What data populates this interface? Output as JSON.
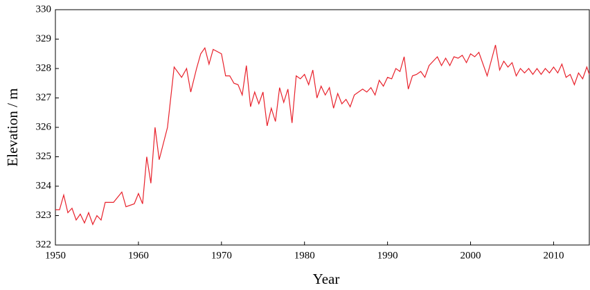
{
  "chart_data": {
    "type": "line",
    "xlabel": "Year",
    "ylabel": "Elevation / m",
    "xlim": [
      1950,
      2014.3
    ],
    "ylim": [
      322,
      330
    ],
    "xticks": [
      1950,
      1960,
      1970,
      1980,
      1990,
      2000,
      2010
    ],
    "yticks": [
      322,
      323,
      324,
      325,
      326,
      327,
      328,
      329,
      330
    ],
    "series": [
      {
        "color": "#e8202a",
        "x": [
          1950,
          1950.5,
          1951,
          1951.5,
          1952,
          1952.5,
          1953,
          1953.5,
          1954,
          1954.5,
          1955,
          1955.5,
          1956,
          1957,
          1958,
          1958.5,
          1959.5,
          1960,
          1960.5,
          1961,
          1961.5,
          1962,
          1962.5,
          1963.5,
          1964.3,
          1965.2,
          1965.8,
          1966.3,
          1967,
          1967.5,
          1968,
          1968.5,
          1969,
          1970,
          1970.5,
          1971,
          1971.5,
          1972,
          1972.5,
          1973,
          1973.5,
          1974,
          1974.5,
          1975,
          1975.5,
          1976,
          1976.5,
          1977,
          1977.5,
          1978,
          1978.5,
          1979,
          1979.5,
          1980,
          1980.5,
          1981,
          1981.5,
          1982,
          1982.5,
          1983,
          1983.5,
          1984,
          1984.5,
          1985,
          1985.5,
          1986,
          1987,
          1987.5,
          1988,
          1988.5,
          1989,
          1989.5,
          1990,
          1990.5,
          1991,
          1991.5,
          1992,
          1992.5,
          1993,
          1993.5,
          1994,
          1994.5,
          1995,
          1996,
          1996.5,
          1997,
          1997.5,
          1998,
          1998.5,
          1999,
          1999.5,
          2000,
          2000.5,
          2001,
          2002,
          2003,
          2003.5,
          2004,
          2004.5,
          2005,
          2005.5,
          2006,
          2006.5,
          2007,
          2007.5,
          2008,
          2008.5,
          2009,
          2009.5,
          2010,
          2010.5,
          2011,
          2011.5,
          2012,
          2012.5,
          2013,
          2013.5,
          2014,
          2014.3
        ],
        "values": [
          323.2,
          323.2,
          323.7,
          323.1,
          323.25,
          322.85,
          323.05,
          322.75,
          323.1,
          322.7,
          323.0,
          322.85,
          323.45,
          323.45,
          323.8,
          323.3,
          323.4,
          323.75,
          323.4,
          325.0,
          324.1,
          326.0,
          324.9,
          326.0,
          328.05,
          327.7,
          328.0,
          327.2,
          328.0,
          328.5,
          328.7,
          328.15,
          328.65,
          328.5,
          327.75,
          327.75,
          327.5,
          327.45,
          327.1,
          328.1,
          326.7,
          327.2,
          326.8,
          327.2,
          326.05,
          326.65,
          326.2,
          327.35,
          326.85,
          327.3,
          326.15,
          327.75,
          327.65,
          327.8,
          327.45,
          327.95,
          327.0,
          327.4,
          327.1,
          327.35,
          326.65,
          327.15,
          326.8,
          326.95,
          326.7,
          327.1,
          327.3,
          327.2,
          327.35,
          327.1,
          327.6,
          327.4,
          327.7,
          327.65,
          328.0,
          327.9,
          328.4,
          327.3,
          327.75,
          327.8,
          327.9,
          327.7,
          328.1,
          328.4,
          328.1,
          328.35,
          328.1,
          328.4,
          328.35,
          328.45,
          328.2,
          328.5,
          328.4,
          328.55,
          327.75,
          328.8,
          327.95,
          328.25,
          328.05,
          328.2,
          327.75,
          328.0,
          327.85,
          328.0,
          327.8,
          328.0,
          327.8,
          328.0,
          327.85,
          328.05,
          327.85,
          328.15,
          327.7,
          327.8,
          327.45,
          327.85,
          327.65,
          328.05,
          327.8
        ]
      }
    ]
  }
}
